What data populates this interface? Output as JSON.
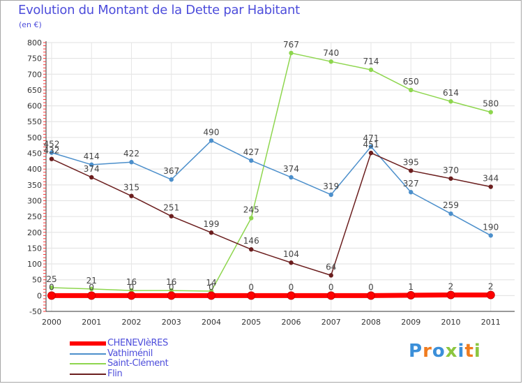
{
  "chart_data": {
    "type": "line",
    "title": "Evolution du Montant de la Dette par Habitant",
    "subtitle": "(en €)",
    "x": [
      "2000",
      "2001",
      "2002",
      "2003",
      "2004",
      "2005",
      "2006",
      "2007",
      "2008",
      "2009",
      "2010",
      "2011"
    ],
    "ylim": [
      -50,
      800
    ],
    "yticks": [
      -50,
      0,
      50,
      100,
      150,
      200,
      250,
      300,
      350,
      400,
      450,
      500,
      550,
      600,
      650,
      700,
      750,
      800
    ],
    "grid": true,
    "legend_position": "bottom-left",
    "series": [
      {
        "name": "CHENEVIèRES",
        "color": "#ff0000",
        "values": [
          0,
          0,
          0,
          0,
          0,
          0,
          0,
          0,
          0,
          1,
          2,
          2
        ]
      },
      {
        "name": "Vathiménil",
        "color": "#4c8fcb",
        "values": [
          452,
          414,
          422,
          367,
          490,
          427,
          374,
          319,
          471,
          327,
          259,
          190
        ]
      },
      {
        "name": "Saint-Clément",
        "color": "#8ed64e",
        "values": [
          25,
          21,
          16,
          16,
          14,
          245,
          767,
          740,
          714,
          650,
          614,
          580
        ]
      },
      {
        "name": "Flin",
        "color": "#6b1e1e",
        "values": [
          432,
          374,
          315,
          251,
          199,
          146,
          104,
          64,
          451,
          395,
          370,
          344
        ]
      }
    ]
  },
  "logo": {
    "text": "Proxiti",
    "colors": [
      "#3b8fd9",
      "#f07b1e",
      "#3b8fd9",
      "#8cc63f",
      "#3b8fd9",
      "#f07b1e",
      "#8cc63f"
    ]
  }
}
